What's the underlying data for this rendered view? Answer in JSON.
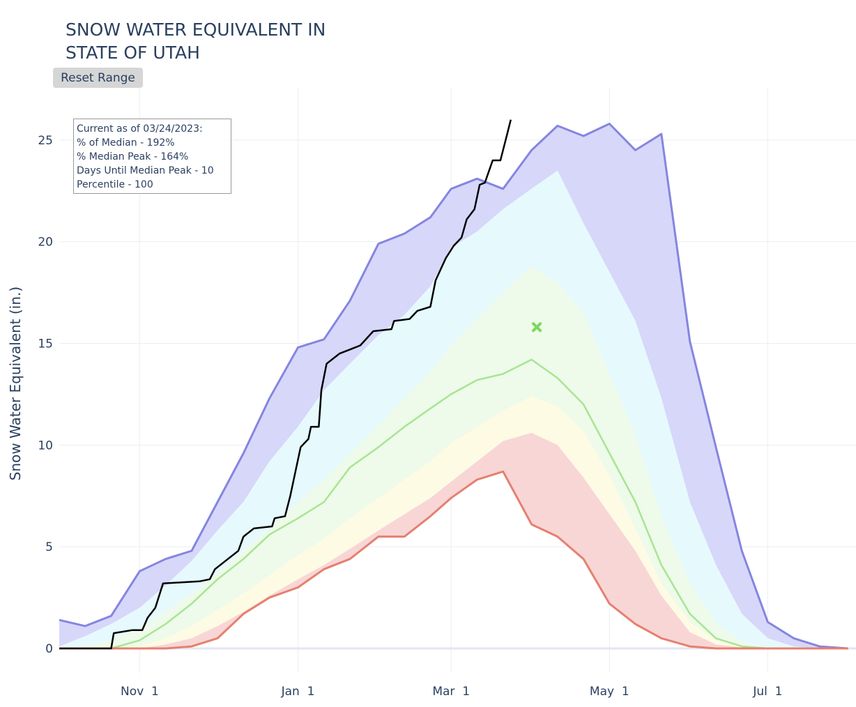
{
  "title": "SNOW WATER EQUIVALENT IN\nSTATE OF UTAH",
  "reset_button": "Reset Range",
  "info_box": {
    "line1": "Current as of 03/24/2023:",
    "line2": "% of Median - 192%",
    "line3": "% Median Peak - 164%",
    "line4": "Days Until Median Peak - 10",
    "line5": "Percentile - 100"
  },
  "colors": {
    "max_line": "#8585e0",
    "band_max_90": "#d7d7fa",
    "band_90_70": "#e6fafd",
    "band_70_30": "#eefaea",
    "band_30_10": "#fdfbe4",
    "band_10_min": "#f8d6d6",
    "median_line": "#a8e593",
    "min_line": "#e5806f",
    "current_line": "#000000",
    "median_peak_marker": "#7cd95c",
    "grid": "#ebedf2",
    "zero_line": "#e4e6ee"
  },
  "chart_data": {
    "type": "area",
    "title": "SNOW WATER EQUIVALENT IN STATE OF UTAH",
    "xlabel": "",
    "ylabel": "Snow Water Equivalent (in.)",
    "xlim": [
      "2022-10-01",
      "2023-08-04"
    ],
    "ylim": [
      -1.2,
      27.6
    ],
    "grid": true,
    "x_ticks": [
      {
        "date": "2022-11-01",
        "label": "Nov  1"
      },
      {
        "date": "2023-01-01",
        "label": "Jan  1"
      },
      {
        "date": "2023-03-01",
        "label": "Mar  1"
      },
      {
        "date": "2023-05-01",
        "label": "May  1"
      },
      {
        "date": "2023-07-01",
        "label": "Jul  1"
      }
    ],
    "y_ticks": [
      0,
      5,
      10,
      15,
      20,
      25
    ],
    "dates": [
      "2022-10-01",
      "2022-10-11",
      "2022-10-21",
      "2022-11-01",
      "2022-11-11",
      "2022-11-21",
      "2022-12-01",
      "2022-12-11",
      "2022-12-21",
      "2023-01-01",
      "2023-01-11",
      "2023-01-21",
      "2023-02-01",
      "2023-02-11",
      "2023-02-21",
      "2023-03-01",
      "2023-03-11",
      "2023-03-21",
      "2023-04-01",
      "2023-04-11",
      "2023-04-21",
      "2023-05-01",
      "2023-05-11",
      "2023-05-21",
      "2023-06-01",
      "2023-06-11",
      "2023-06-21",
      "2023-07-01",
      "2023-07-11",
      "2023-07-21",
      "2023-08-01"
    ],
    "series": {
      "max": [
        1.4,
        1.1,
        1.6,
        3.8,
        4.4,
        4.8,
        7.2,
        9.6,
        12.3,
        14.8,
        15.2,
        17.1,
        19.9,
        20.4,
        21.2,
        22.6,
        23.1,
        22.6,
        24.5,
        25.7,
        25.2,
        25.8,
        24.5,
        25.3,
        15.1,
        9.9,
        4.8,
        1.3,
        0.5,
        0.1,
        0
      ],
      "p90": [
        0.1,
        0.6,
        1.2,
        2.0,
        3.1,
        4.3,
        5.8,
        7.2,
        9.2,
        10.9,
        12.7,
        14.0,
        15.4,
        16.4,
        17.8,
        19.7,
        20.5,
        21.6,
        22.6,
        23.5,
        20.9,
        18.5,
        16.1,
        12.3,
        7.2,
        4.1,
        1.7,
        0.5,
        0.1,
        0,
        0
      ],
      "p70": [
        0,
        0.1,
        0.4,
        1.0,
        1.8,
        2.7,
        3.7,
        4.8,
        5.9,
        7.2,
        8.3,
        9.6,
        11.0,
        12.3,
        13.6,
        14.9,
        16.2,
        17.5,
        18.8,
        18.0,
        16.5,
        13.5,
        10.5,
        6.5,
        3.2,
        1.3,
        0.3,
        0.05,
        0,
        0,
        0
      ],
      "median": [
        0,
        0,
        0,
        0.4,
        1.2,
        2.2,
        3.4,
        4.4,
        5.6,
        6.4,
        7.2,
        8.9,
        9.9,
        10.9,
        11.8,
        12.5,
        13.2,
        13.5,
        14.2,
        13.3,
        12.0,
        9.6,
        7.2,
        4.1,
        1.7,
        0.5,
        0.1,
        0,
        0,
        0,
        0
      ],
      "p30": [
        0,
        0,
        0,
        0.1,
        0.5,
        1.1,
        1.9,
        2.7,
        3.6,
        4.6,
        5.4,
        6.4,
        7.4,
        8.3,
        9.2,
        10.1,
        10.9,
        11.7,
        12.4,
        11.9,
        10.7,
        8.5,
        5.9,
        3.2,
        1.3,
        0.4,
        0.1,
        0,
        0,
        0,
        0
      ],
      "p10": [
        0,
        0,
        0,
        0,
        0.2,
        0.5,
        1.1,
        1.8,
        2.6,
        3.4,
        4.1,
        4.9,
        5.8,
        6.6,
        7.4,
        8.2,
        9.2,
        10.2,
        10.6,
        10.0,
        8.4,
        6.6,
        4.8,
        2.6,
        0.8,
        0.2,
        0.05,
        0,
        0,
        0,
        0
      ],
      "min": [
        0,
        0,
        0,
        0,
        0,
        0.1,
        0.5,
        1.7,
        2.5,
        3.0,
        3.9,
        4.4,
        5.5,
        5.5,
        6.5,
        7.4,
        8.3,
        8.7,
        6.1,
        5.5,
        4.4,
        2.2,
        1.2,
        0.5,
        0.1,
        0,
        0,
        0,
        0,
        0,
        0
      ]
    },
    "current_year": [
      [
        "2022-10-01",
        0
      ],
      [
        "2022-10-21",
        0
      ],
      [
        "2022-10-22",
        0.75
      ],
      [
        "2022-10-29",
        0.9
      ],
      [
        "2022-11-02",
        0.9
      ],
      [
        "2022-11-04",
        1.5
      ],
      [
        "2022-11-07",
        2.0
      ],
      [
        "2022-11-10",
        3.2
      ],
      [
        "2022-11-24",
        3.3
      ],
      [
        "2022-11-28",
        3.4
      ],
      [
        "2022-11-30",
        3.9
      ],
      [
        "2022-12-05",
        4.4
      ],
      [
        "2022-12-09",
        4.8
      ],
      [
        "2022-12-11",
        5.5
      ],
      [
        "2022-12-15",
        5.9
      ],
      [
        "2022-12-22",
        6.0
      ],
      [
        "2022-12-23",
        6.4
      ],
      [
        "2022-12-27",
        6.5
      ],
      [
        "2022-12-29",
        7.5
      ],
      [
        "2023-01-02",
        9.9
      ],
      [
        "2023-01-05",
        10.3
      ],
      [
        "2023-01-06",
        10.9
      ],
      [
        "2023-01-09",
        10.9
      ],
      [
        "2023-01-10",
        12.7
      ],
      [
        "2023-01-12",
        14.0
      ],
      [
        "2023-01-17",
        14.5
      ],
      [
        "2023-01-21",
        14.7
      ],
      [
        "2023-01-25",
        14.9
      ],
      [
        "2023-01-30",
        15.6
      ],
      [
        "2023-02-06",
        15.7
      ],
      [
        "2023-02-07",
        16.1
      ],
      [
        "2023-02-13",
        16.2
      ],
      [
        "2023-02-16",
        16.6
      ],
      [
        "2023-02-21",
        16.8
      ],
      [
        "2023-02-23",
        18.1
      ],
      [
        "2023-02-27",
        19.2
      ],
      [
        "2023-03-02",
        19.8
      ],
      [
        "2023-03-05",
        20.2
      ],
      [
        "2023-03-07",
        21.1
      ],
      [
        "2023-03-10",
        21.6
      ],
      [
        "2023-03-12",
        22.8
      ],
      [
        "2023-03-14",
        22.9
      ],
      [
        "2023-03-17",
        24.0
      ],
      [
        "2023-03-20",
        24.0
      ],
      [
        "2023-03-22",
        25.0
      ],
      [
        "2023-03-24",
        26.0
      ]
    ],
    "median_peak": {
      "date": "2023-04-03",
      "value": 15.8
    }
  }
}
